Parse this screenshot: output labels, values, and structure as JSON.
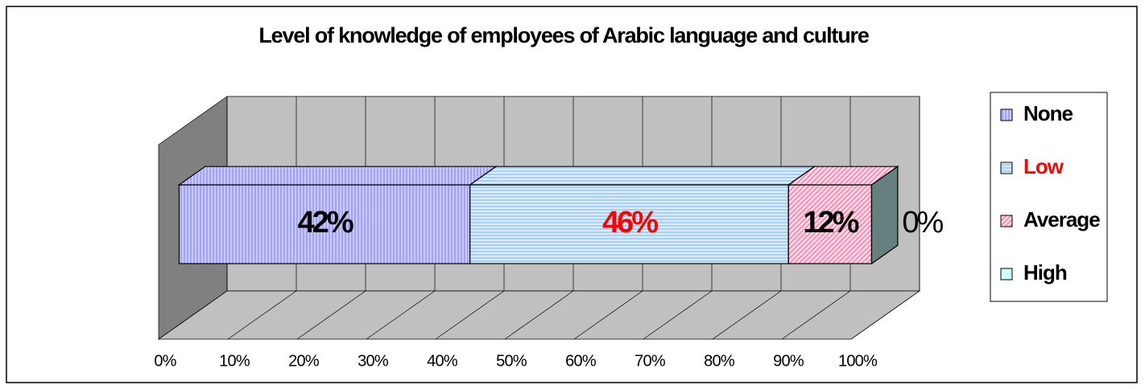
{
  "chart_data": {
    "type": "bar3d_stacked_horizontal",
    "title": "Level of knowledge of employees of Arabic language and culture",
    "categories": [
      null
    ],
    "series": [
      {
        "name": "None",
        "color": "#c8c8ff",
        "stripe": "#8080e0",
        "pattern": "vertical",
        "label_color": "#000000",
        "values": [
          42
        ],
        "value_labels": [
          "42%"
        ]
      },
      {
        "name": "Low",
        "color": "#d8ecff",
        "stripe": "#80b0e0",
        "pattern": "horizontal",
        "label_color": "#ff0000",
        "values": [
          46
        ],
        "value_labels": [
          "46%"
        ]
      },
      {
        "name": "Average",
        "color": "#ffd8e8",
        "stripe": "#f080a8",
        "pattern": "diagonal",
        "label_color": "#000000",
        "values": [
          12
        ],
        "value_labels": [
          "12%"
        ]
      },
      {
        "name": "High",
        "color": "#ccffff",
        "stripe": "#ccffff",
        "pattern": "solid",
        "label_color": "#000000",
        "values": [
          0
        ],
        "value_labels": [
          "0%"
        ]
      }
    ],
    "xlim": [
      0,
      100
    ],
    "xticks": [
      {
        "value": 0,
        "label": "0%"
      },
      {
        "value": 10,
        "label": "10%"
      },
      {
        "value": 20,
        "label": "20%"
      },
      {
        "value": 30,
        "label": "30%"
      },
      {
        "value": 40,
        "label": "40%"
      },
      {
        "value": 50,
        "label": "50%"
      },
      {
        "value": 60,
        "label": "60%"
      },
      {
        "value": 70,
        "label": "70%"
      },
      {
        "value": 80,
        "label": "80%"
      },
      {
        "value": 90,
        "label": "90%"
      },
      {
        "value": 100,
        "label": "100%"
      }
    ],
    "grid": true,
    "legend": "right"
  }
}
